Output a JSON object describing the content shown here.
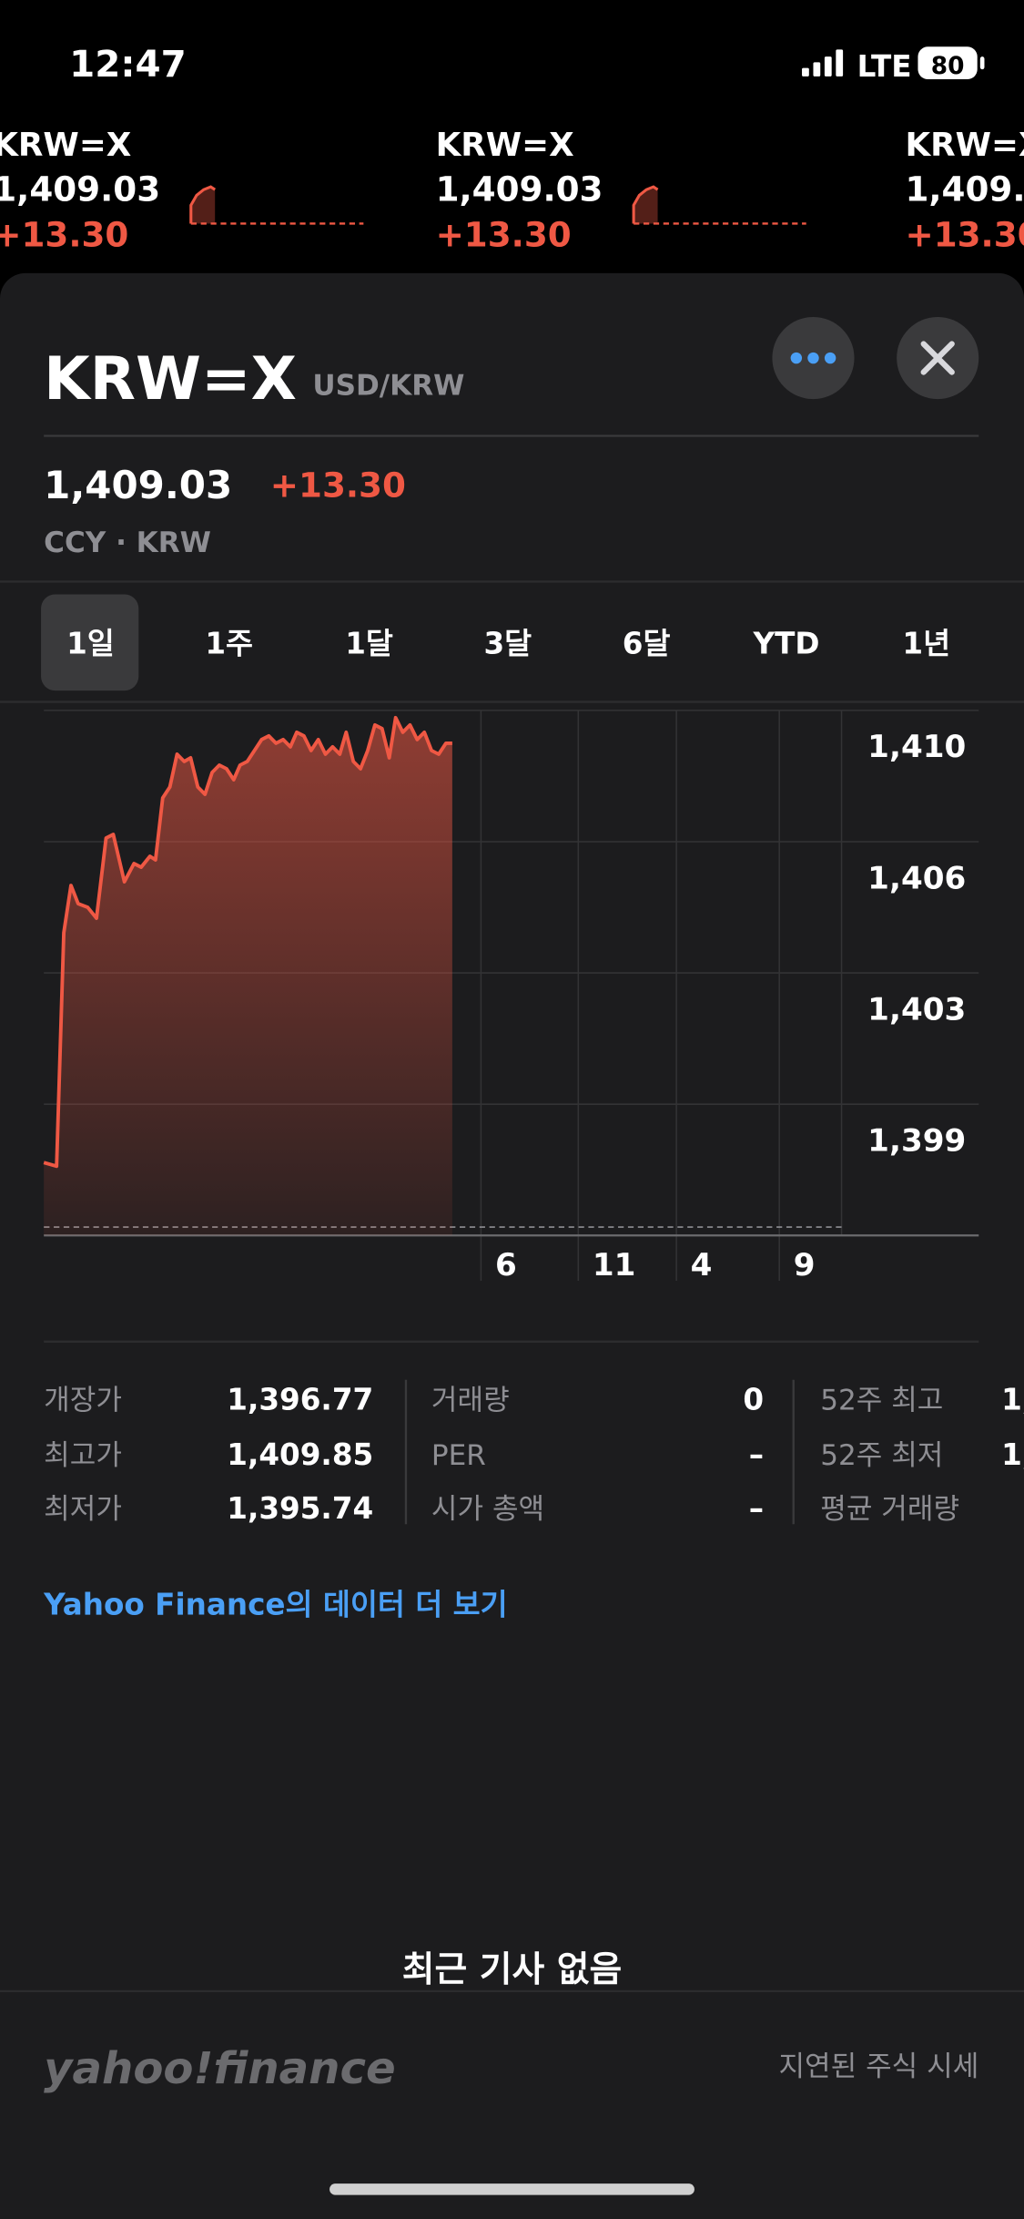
{
  "status_bar": {
    "time": "12:47",
    "network": "LTE",
    "battery": "80"
  },
  "ticker": [
    {
      "symbol": "KRW=X",
      "price": "1,409.03",
      "change": "+13.30"
    },
    {
      "symbol": "KRW=X",
      "price": "1,409.03",
      "change": "+13.30"
    },
    {
      "symbol": "KRW=X",
      "price": "1,409.03",
      "change": "+13.30"
    }
  ],
  "header": {
    "symbol": "KRW=X",
    "pair": "USD/KRW",
    "price": "1,409.03",
    "change": "+13.30",
    "meta": "CCY · KRW"
  },
  "tabs": [
    "1일",
    "1주",
    "1달",
    "3달",
    "6달",
    "YTD",
    "1년"
  ],
  "chart_data": {
    "type": "line",
    "color": "#ef5844",
    "x": [
      0.0,
      1.6,
      2.5,
      3.4,
      4.3,
      5.5,
      6.6,
      7.8,
      8.7,
      10.1,
      11.3,
      12.2,
      13.3,
      14.0,
      14.9,
      15.8,
      16.7,
      17.6,
      18.4,
      19.3,
      20.2,
      21.1,
      22.0,
      22.9,
      23.8,
      24.6,
      25.5,
      26.4,
      27.3,
      28.2,
      29.1,
      30.0,
      30.9,
      31.7,
      32.6,
      33.5,
      34.4,
      35.3,
      36.2,
      37.1,
      37.9,
      38.8,
      39.7,
      40.6,
      41.5,
      42.4,
      43.3,
      44.1,
      45.0,
      45.9,
      46.8,
      47.7,
      48.6,
      49.5,
      50.4,
      51.2
    ],
    "values": [
      1397.5,
      1397.4,
      1403.8,
      1405.1,
      1404.6,
      1404.5,
      1404.2,
      1406.4,
      1406.5,
      1405.2,
      1405.7,
      1405.6,
      1405.9,
      1405.8,
      1407.5,
      1407.8,
      1408.7,
      1408.5,
      1408.6,
      1407.8,
      1407.6,
      1408.2,
      1408.4,
      1408.3,
      1408.0,
      1408.4,
      1408.5,
      1408.8,
      1409.1,
      1409.2,
      1409.0,
      1409.1,
      1408.9,
      1409.3,
      1409.2,
      1408.8,
      1409.1,
      1408.7,
      1408.9,
      1408.7,
      1409.3,
      1408.5,
      1408.3,
      1408.8,
      1409.5,
      1409.4,
      1408.6,
      1409.7,
      1409.3,
      1409.5,
      1409.1,
      1409.3,
      1408.8,
      1408.7,
      1409.0,
      1409.0
    ],
    "previous_close": 1395.73,
    "xlim": [
      0,
      100
    ],
    "xticks": [
      {
        "value": 54.8,
        "label": "6"
      },
      {
        "value": 67.0,
        "label": "11"
      },
      {
        "value": 79.3,
        "label": "4"
      },
      {
        "value": 92.2,
        "label": "9"
      }
    ],
    "ylim": [
      1395.5,
      1409.9
    ],
    "yticks": [
      {
        "value": 1409.9,
        "label": "1,410"
      },
      {
        "value": 1406.3,
        "label": "1,406"
      },
      {
        "value": 1402.7,
        "label": "1,403"
      },
      {
        "value": 1399.1,
        "label": "1,399"
      }
    ],
    "grid": true
  },
  "stats": [
    [
      [
        "개장가",
        "1,396.77"
      ],
      [
        "최고가",
        "1,409.85"
      ],
      [
        "최저가",
        "1,395.74"
      ]
    ],
    [
      [
        "거래량",
        "0"
      ],
      [
        "PER",
        "–"
      ],
      [
        "시가 총액",
        "–"
      ]
    ],
    [
      [
        "52주 최고",
        "1,"
      ],
      [
        "52주 최저",
        "1,"
      ],
      [
        "평균 거래량"
      ]
    ]
  ],
  "link": "Yahoo Finance의 데이터 더 보기",
  "news_empty": "최근 기사 없음",
  "footer": {
    "logo": "yahoo!finance",
    "note": "지연된 주식 시세"
  }
}
